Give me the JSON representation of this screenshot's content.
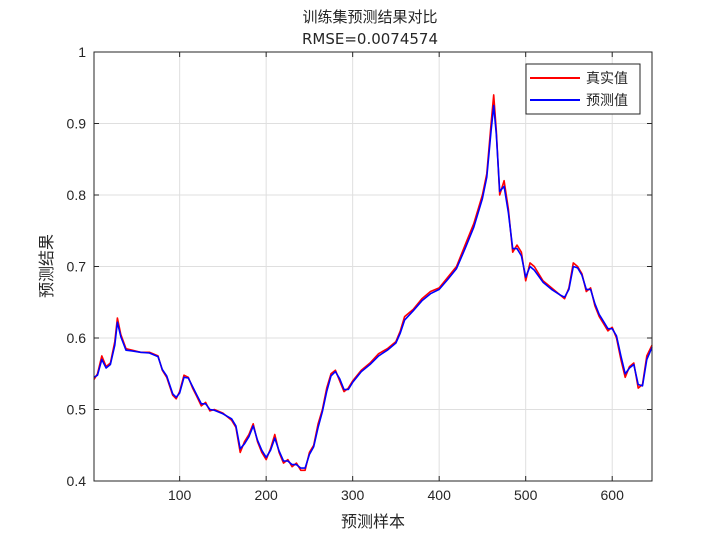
{
  "chart_data": {
    "type": "line",
    "title": "训练集预测结果对比",
    "subtitle": "RMSE=0.0074574",
    "xlabel": "预测样本",
    "ylabel": "预测结果",
    "xlim": [
      1,
      646
    ],
    "ylim": [
      0.4,
      1.0
    ],
    "xticks": [
      100,
      200,
      300,
      400,
      500,
      600
    ],
    "yticks": [
      0.4,
      0.5,
      0.6,
      0.7,
      0.8,
      0.9,
      1.0
    ],
    "xtick_labels": [
      "100",
      "200",
      "300",
      "400",
      "500",
      "600"
    ],
    "ytick_labels": [
      "0.4",
      "0.5",
      "0.6",
      "0.7",
      "0.8",
      "0.9",
      "1"
    ],
    "grid": true,
    "legend_position": "top-right",
    "series": [
      {
        "name": "真实值",
        "color": "#ff0000",
        "x": [
          1,
          5,
          10,
          15,
          20,
          25,
          28,
          32,
          38,
          45,
          55,
          65,
          75,
          80,
          85,
          92,
          96,
          100,
          105,
          110,
          115,
          120,
          125,
          130,
          135,
          140,
          150,
          160,
          165,
          170,
          175,
          180,
          185,
          190,
          195,
          200,
          205,
          210,
          215,
          220,
          225,
          230,
          235,
          240,
          245,
          250,
          255,
          260,
          265,
          270,
          275,
          280,
          285,
          290,
          295,
          300,
          310,
          320,
          330,
          340,
          350,
          355,
          360,
          370,
          380,
          390,
          400,
          410,
          420,
          430,
          440,
          450,
          455,
          460,
          463,
          466,
          470,
          475,
          480,
          485,
          490,
          495,
          500,
          505,
          510,
          520,
          530,
          540,
          545,
          550,
          555,
          560,
          565,
          570,
          575,
          580,
          585,
          590,
          595,
          600,
          605,
          610,
          615,
          620,
          625,
          630,
          635,
          640,
          646
        ],
        "y": [
          0.542,
          0.55,
          0.575,
          0.56,
          0.565,
          0.595,
          0.628,
          0.605,
          0.585,
          0.583,
          0.58,
          0.58,
          0.575,
          0.555,
          0.545,
          0.52,
          0.515,
          0.525,
          0.548,
          0.545,
          0.53,
          0.518,
          0.505,
          0.51,
          0.498,
          0.5,
          0.495,
          0.485,
          0.475,
          0.44,
          0.455,
          0.465,
          0.48,
          0.455,
          0.44,
          0.43,
          0.445,
          0.465,
          0.44,
          0.425,
          0.43,
          0.42,
          0.425,
          0.415,
          0.415,
          0.44,
          0.45,
          0.48,
          0.5,
          0.53,
          0.55,
          0.555,
          0.54,
          0.525,
          0.53,
          0.54,
          0.555,
          0.565,
          0.578,
          0.585,
          0.595,
          0.61,
          0.63,
          0.64,
          0.655,
          0.665,
          0.67,
          0.685,
          0.7,
          0.73,
          0.76,
          0.8,
          0.83,
          0.9,
          0.94,
          0.89,
          0.8,
          0.82,
          0.78,
          0.72,
          0.73,
          0.72,
          0.68,
          0.705,
          0.7,
          0.68,
          0.67,
          0.66,
          0.655,
          0.67,
          0.705,
          0.7,
          0.69,
          0.665,
          0.67,
          0.645,
          0.63,
          0.62,
          0.61,
          0.615,
          0.6,
          0.57,
          0.545,
          0.56,
          0.565,
          0.53,
          0.535,
          0.575,
          0.59
        ]
      },
      {
        "name": "预测值",
        "color": "#0000ff",
        "x": [
          1,
          5,
          10,
          15,
          20,
          25,
          28,
          32,
          38,
          45,
          55,
          65,
          75,
          80,
          85,
          92,
          96,
          100,
          105,
          110,
          115,
          120,
          125,
          130,
          135,
          140,
          150,
          160,
          165,
          170,
          175,
          180,
          185,
          190,
          195,
          200,
          205,
          210,
          215,
          220,
          225,
          230,
          235,
          240,
          245,
          250,
          255,
          260,
          265,
          270,
          275,
          280,
          285,
          290,
          295,
          300,
          310,
          320,
          330,
          340,
          350,
          355,
          360,
          370,
          380,
          390,
          400,
          410,
          420,
          430,
          440,
          450,
          455,
          460,
          463,
          466,
          470,
          475,
          480,
          485,
          490,
          495,
          500,
          505,
          510,
          520,
          530,
          540,
          545,
          550,
          555,
          560,
          565,
          570,
          575,
          580,
          585,
          590,
          595,
          600,
          605,
          610,
          615,
          620,
          625,
          630,
          635,
          640,
          646
        ],
        "y": [
          0.545,
          0.548,
          0.57,
          0.558,
          0.563,
          0.59,
          0.622,
          0.602,
          0.583,
          0.582,
          0.58,
          0.579,
          0.574,
          0.556,
          0.547,
          0.522,
          0.517,
          0.523,
          0.545,
          0.544,
          0.532,
          0.52,
          0.508,
          0.508,
          0.5,
          0.499,
          0.494,
          0.487,
          0.477,
          0.445,
          0.452,
          0.462,
          0.477,
          0.457,
          0.443,
          0.433,
          0.443,
          0.46,
          0.442,
          0.428,
          0.428,
          0.423,
          0.423,
          0.418,
          0.418,
          0.437,
          0.448,
          0.475,
          0.497,
          0.525,
          0.547,
          0.553,
          0.543,
          0.528,
          0.528,
          0.538,
          0.553,
          0.563,
          0.575,
          0.583,
          0.593,
          0.607,
          0.625,
          0.638,
          0.652,
          0.662,
          0.668,
          0.682,
          0.697,
          0.725,
          0.755,
          0.795,
          0.825,
          0.89,
          0.925,
          0.885,
          0.805,
          0.812,
          0.775,
          0.725,
          0.725,
          0.715,
          0.685,
          0.7,
          0.695,
          0.678,
          0.668,
          0.66,
          0.657,
          0.668,
          0.7,
          0.698,
          0.688,
          0.668,
          0.668,
          0.648,
          0.633,
          0.623,
          0.613,
          0.613,
          0.603,
          0.575,
          0.55,
          0.558,
          0.563,
          0.535,
          0.533,
          0.57,
          0.587
        ]
      }
    ]
  }
}
